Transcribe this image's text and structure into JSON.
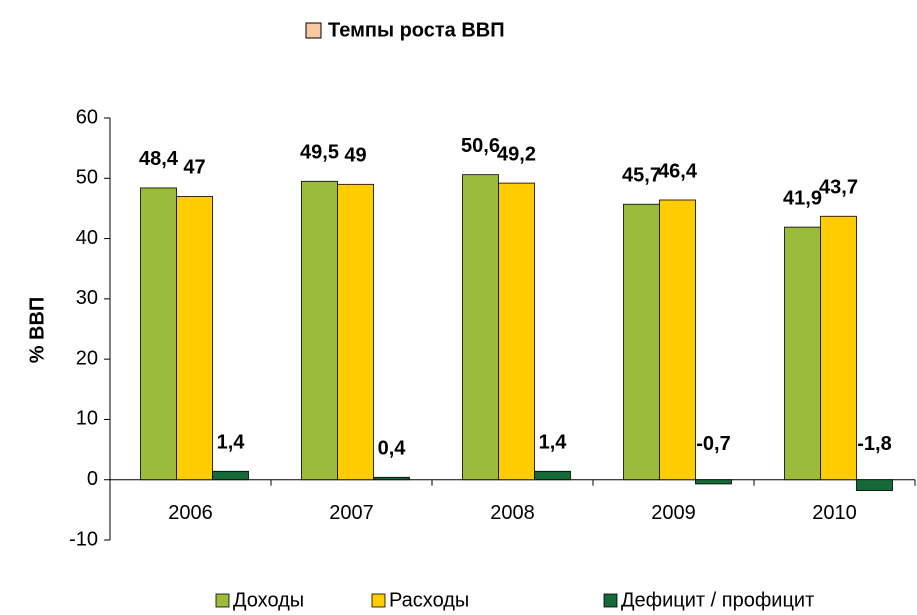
{
  "chart_data": {
    "type": "bar",
    "title": "Темпы роста ВВП",
    "ylabel": "% ВВП",
    "categories": [
      "2006",
      "2007",
      "2008",
      "2009",
      "2010"
    ],
    "series": [
      {
        "name": "Доходы",
        "color": "#9bbb3b",
        "values": [
          48.4,
          49.5,
          50.6,
          45.7,
          41.9
        ],
        "value_labels": [
          "48,4",
          "49,5",
          "50,6",
          "45,7",
          "41,9"
        ]
      },
      {
        "name": "Расходы",
        "color": "#ffcc00",
        "values": [
          47,
          49,
          49.2,
          46.4,
          43.7
        ],
        "value_labels": [
          "47",
          "49",
          "49,2",
          "46,4",
          "43,7"
        ]
      },
      {
        "name": "Дефицит / профицит",
        "color": "#17693a",
        "values": [
          1.4,
          0.4,
          1.4,
          -0.7,
          -1.8
        ],
        "value_labels": [
          "1,4",
          "0,4",
          "1,4",
          "-0,7",
          "-1,8"
        ]
      }
    ],
    "ylim": [
      -10,
      60
    ],
    "yticks": [
      -10,
      0,
      10,
      20,
      30,
      40,
      50,
      60
    ],
    "grid": false
  }
}
